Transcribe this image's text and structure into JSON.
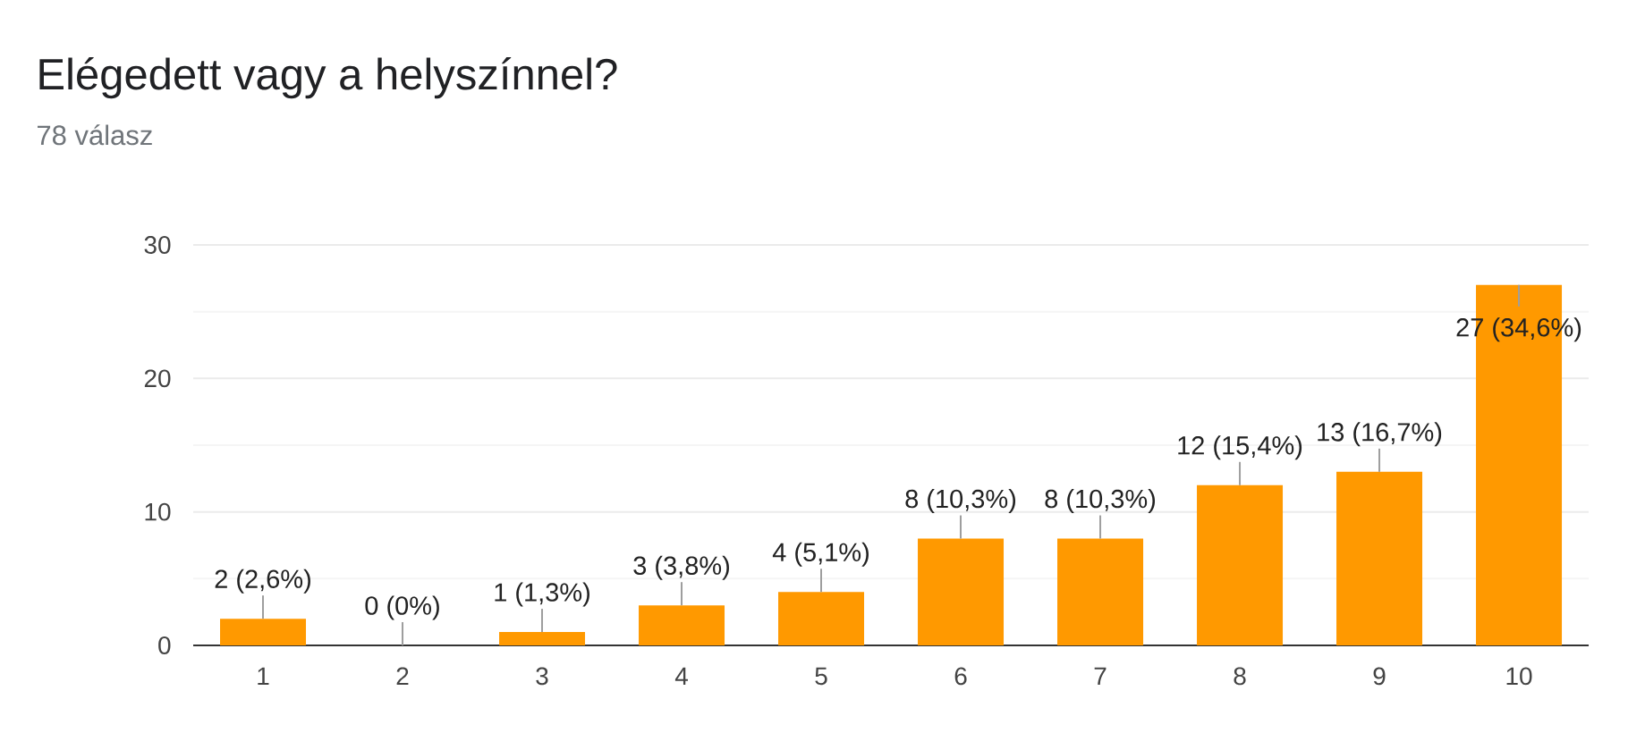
{
  "chart_data": {
    "type": "bar",
    "title": "Elégedett vagy a helyszínnel?",
    "subtitle": "78 válasz",
    "categories": [
      "1",
      "2",
      "3",
      "4",
      "5",
      "6",
      "7",
      "8",
      "9",
      "10"
    ],
    "values": [
      2,
      0,
      1,
      3,
      4,
      8,
      8,
      12,
      13,
      27
    ],
    "value_labels": [
      "2 (2,6%)",
      "0 (0%)",
      "1 (1,3%)",
      "3 (3,8%)",
      "4 (5,1%)",
      "8 (10,3%)",
      "8 (10,3%)",
      "12 (15,4%)",
      "13 (16,7%)",
      "27 (34,6%)"
    ],
    "color": "#ff9900",
    "ylim": [
      0,
      30
    ],
    "yticks": [
      0,
      {
        "value": 5,
        "label": null
      },
      10,
      {
        "value": 15,
        "label": null
      },
      20,
      {
        "value": 25,
        "label": null
      },
      30
    ],
    "grid": "y"
  }
}
